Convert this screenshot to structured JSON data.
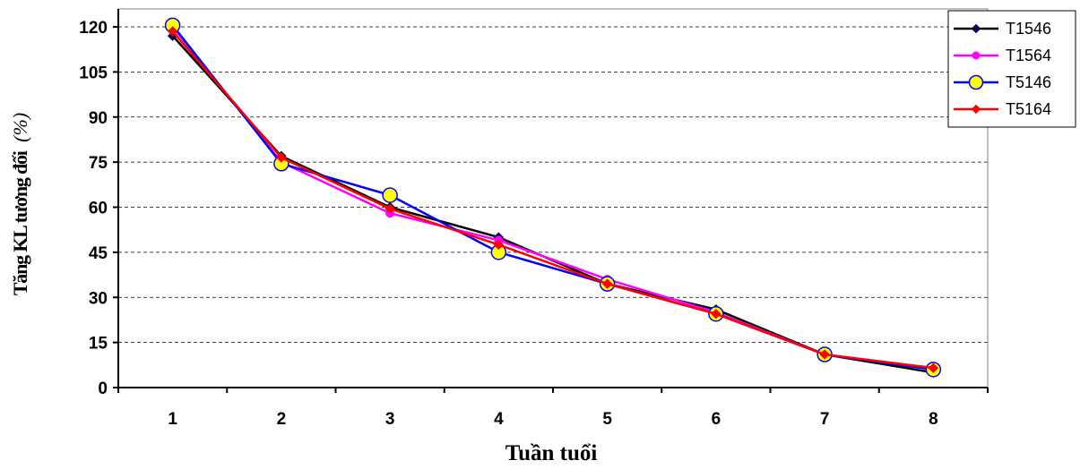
{
  "chart_data": {
    "type": "line",
    "title": "",
    "xlabel": "Tuần tuổi",
    "ylabel": "Tăng KL tương đối",
    "ylabel_unit": "(%)",
    "categories": [
      "1",
      "2",
      "3",
      "4",
      "5",
      "6",
      "7",
      "8"
    ],
    "ylim": [
      0,
      120
    ],
    "yticks": [
      "0",
      "15",
      "30",
      "45",
      "60",
      "75",
      "90",
      "105",
      "120"
    ],
    "grid": "horizontal-dashed",
    "legend_position": "top-right",
    "series": [
      {
        "name": "T1546",
        "color": "#000000",
        "marker": "diamond",
        "marker_fill": "#000080",
        "values": [
          117,
          77,
          60,
          50,
          34.5,
          26,
          11,
          5
        ]
      },
      {
        "name": "T1564",
        "color": "#ff00ff",
        "marker": "circle",
        "marker_fill": "#ff00ff",
        "values": [
          120,
          75,
          58,
          49,
          36,
          25,
          11,
          6.5
        ]
      },
      {
        "name": "T5146",
        "color": "#0000ff",
        "marker": "circle",
        "marker_fill": "#ffff00",
        "values": [
          120.5,
          74.5,
          64,
          45,
          34.5,
          24.5,
          11,
          6
        ]
      },
      {
        "name": "T5164",
        "color": "#ff0000",
        "marker": "diamond",
        "marker_fill": "#ff0000",
        "values": [
          118.5,
          76.5,
          59.5,
          47.5,
          34.5,
          24.5,
          11,
          6.5
        ]
      }
    ]
  }
}
